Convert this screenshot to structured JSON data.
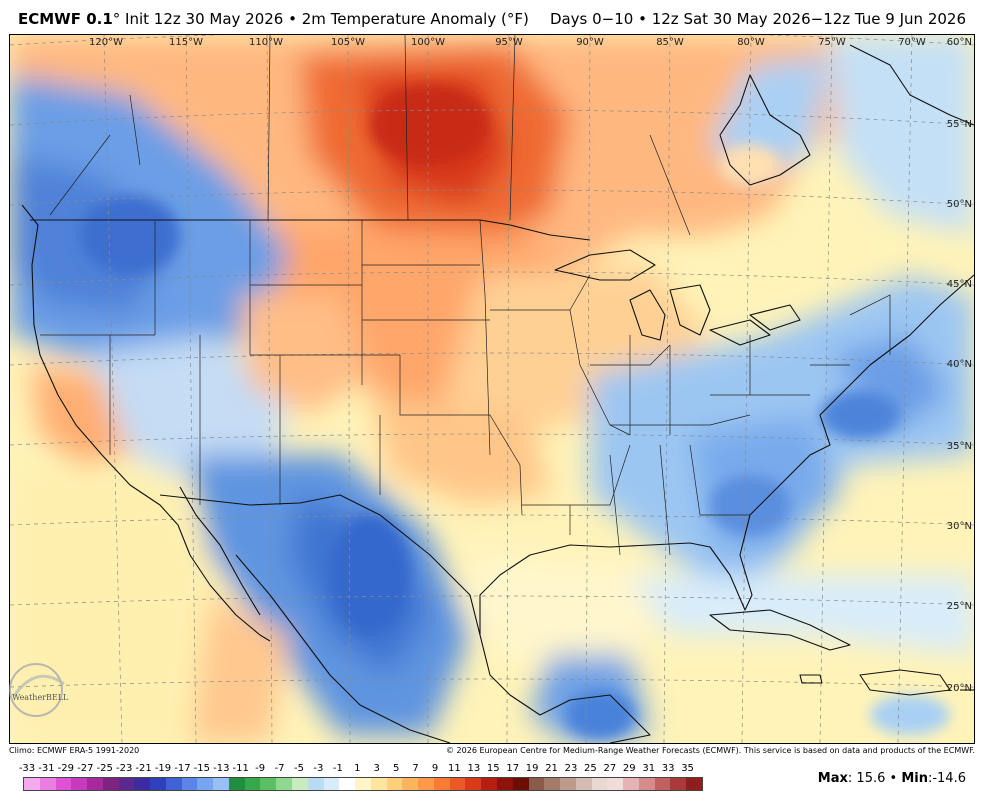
{
  "header": {
    "model": "ECMWF 0.1",
    "deg": "°",
    "left_rest": " Init 12z 30 May 2026 • 2m Temperature Anomaly (°F)",
    "right": "Days 0−10 • 12z Sat 30 May 2026−12z Tue 9 Jun 2026"
  },
  "map": {
    "lon_labels": [
      "120°W",
      "115°W",
      "110°W",
      "105°W",
      "100°W",
      "95°W",
      "90°W",
      "85°W",
      "80°W",
      "75°W",
      "70°W"
    ],
    "lat_labels": [
      "60°N",
      "55°N",
      "50°N",
      "45°N",
      "40°N",
      "35°N",
      "30°N",
      "25°N",
      "20°N"
    ]
  },
  "logo": {
    "text": "WeatherBELL"
  },
  "footer": {
    "left": "Climo: ECMWF ERA-5 1991-2020",
    "right": "© 2026 European Centre for Medium-Range Weather Forecasts (ECMWF). This service is based on data and products of the ECMWF."
  },
  "legend": {
    "labels": [
      "-33",
      "-31",
      "-29",
      "-27",
      "-25",
      "-23",
      "-21",
      "-19",
      "-17",
      "-15",
      "-13",
      "-11",
      "-9",
      "-7",
      "-5",
      "-3",
      "-1",
      "1",
      "3",
      "5",
      "7",
      "9",
      "11",
      "13",
      "15",
      "17",
      "19",
      "21",
      "23",
      "25",
      "27",
      "29",
      "31",
      "33",
      "35"
    ],
    "colors": [
      "#f4a8ee",
      "#ea7ee2",
      "#df52d6",
      "#c63bbf",
      "#a52b9e",
      "#7e2380",
      "#5a2a8e",
      "#3c2ca2",
      "#2f40bc",
      "#3f63d6",
      "#5a84e6",
      "#78a4f0",
      "#98c0f6",
      "#1f8e3e",
      "#36a84a",
      "#5cc062",
      "#90d88e",
      "#c8ecc0",
      "#b8dcf4",
      "#d8ecfa",
      "#ffffff",
      "#fff5c8",
      "#ffe69e",
      "#ffd07a",
      "#ffb560",
      "#ff9a4a",
      "#f77b36",
      "#ea5a26",
      "#d83a1a",
      "#b81e10",
      "#8e1208",
      "#6c0e06",
      "#8a5a4a",
      "#a47a6a",
      "#bc9a8c",
      "#d4bcb2",
      "#e8d8d0",
      "#f0dcd8",
      "#e4b4b4",
      "#d48c8c",
      "#c06060",
      "#a83a3a",
      "#901e1e"
    ]
  },
  "stats": {
    "max_label": "Max",
    "max_value": ": 15.6",
    "sep": " • ",
    "min_label": "Min",
    "min_value": ":-14.6"
  }
}
